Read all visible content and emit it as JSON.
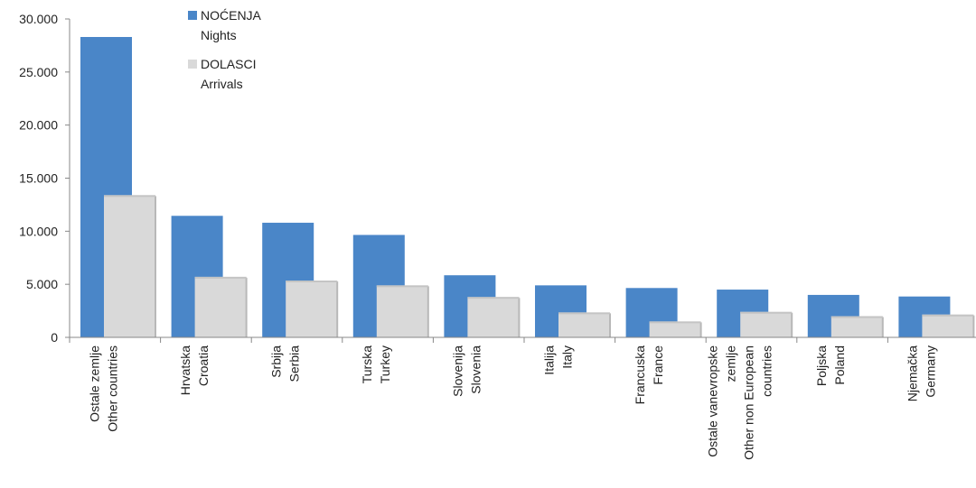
{
  "chart_data": {
    "type": "bar",
    "categories": [
      [
        "Ostale zemlje",
        "Other countries"
      ],
      [
        "Hrvatska",
        "Croatia"
      ],
      [
        "Srbija",
        "Serbia"
      ],
      [
        "Turska",
        "Turkey"
      ],
      [
        "Slovenija",
        "Slovenia"
      ],
      [
        "Italija",
        "Italy"
      ],
      [
        "Francuska",
        "France"
      ],
      [
        "Ostale vanevropske",
        "zemlje",
        "Other non European",
        "countries"
      ],
      [
        "Poljska",
        "Poland"
      ],
      [
        "Njemačka",
        "Germany"
      ]
    ],
    "series": [
      {
        "name": [
          "NOĆENJA",
          "Nights"
        ],
        "color": "#4a86c8",
        "values": [
          28300,
          11450,
          10800,
          9650,
          5850,
          4900,
          4650,
          4500,
          4000,
          3850
        ]
      },
      {
        "name": [
          "DOLASCI",
          "Arrivals"
        ],
        "color": "#d9d9d9",
        "values": [
          13400,
          5700,
          5350,
          4900,
          3800,
          2350,
          1500,
          2400,
          2000,
          2150
        ]
      }
    ],
    "yticks": [
      "0",
      "5.000",
      "10.000",
      "15.000",
      "20.000",
      "25.000",
      "30.000"
    ],
    "ylim": [
      0,
      30000
    ],
    "grid": false,
    "legend_position": "top-left"
  }
}
